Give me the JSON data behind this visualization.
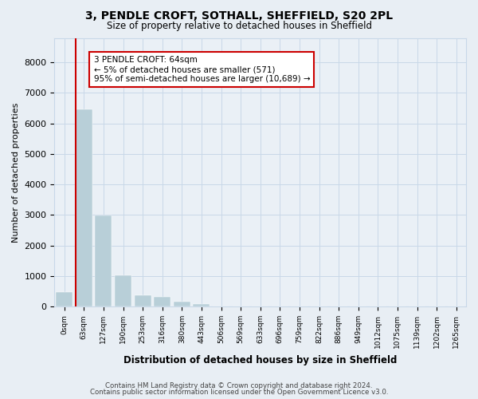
{
  "title": "3, PENDLE CROFT, SOTHALL, SHEFFIELD, S20 2PL",
  "subtitle": "Size of property relative to detached houses in Sheffield",
  "xlabel": "Distribution of detached houses by size in Sheffield",
  "ylabel": "Number of detached properties",
  "categories": [
    "0sqm",
    "63sqm",
    "127sqm",
    "190sqm",
    "253sqm",
    "316sqm",
    "380sqm",
    "443sqm",
    "506sqm",
    "569sqm",
    "633sqm",
    "696sqm",
    "759sqm",
    "822sqm",
    "886sqm",
    "949sqm",
    "1012sqm",
    "1075sqm",
    "1139sqm",
    "1202sqm",
    "1265sqm"
  ],
  "values": [
    480,
    6450,
    2980,
    1020,
    380,
    310,
    160,
    90,
    20,
    10,
    5,
    3,
    2,
    2,
    1,
    1,
    1,
    1,
    0,
    0,
    0
  ],
  "bar_color": "#b8cfd8",
  "highlight_color": "#cc0000",
  "highlight_index": 1,
  "ylim": [
    0,
    8800
  ],
  "yticks": [
    0,
    1000,
    2000,
    3000,
    4000,
    5000,
    6000,
    7000,
    8000
  ],
  "annotation_title": "3 PENDLE CROFT: 64sqm",
  "annotation_line1": "← 5% of detached houses are smaller (571)",
  "annotation_line2": "95% of semi-detached houses are larger (10,689) →",
  "red_line_x": 1,
  "footer1": "Contains HM Land Registry data © Crown copyright and database right 2024.",
  "footer2": "Contains public sector information licensed under the Open Government Licence v3.0.",
  "background_color": "#e8eef4",
  "plot_bg_color": "#eaf0f6",
  "grid_color": "#c8d8e8"
}
